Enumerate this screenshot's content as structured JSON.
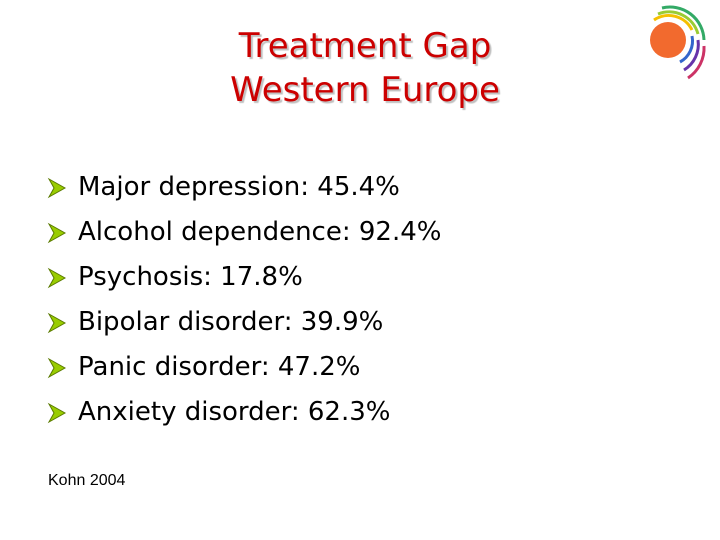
{
  "slide": {
    "title_line1": "Treatment Gap",
    "title_line2": "Western Europe",
    "bullets": [
      "Major depression: 45.4%",
      "Alcohol dependence: 92.4%",
      "Psychosis: 17.8%",
      "Bipolar disorder: 39.9%",
      "Panic disorder: 47.2%",
      "Anxiety disorder: 62.3%"
    ],
    "reference": "Kohn 2004"
  },
  "colors": {
    "title": "#cc0000",
    "bullet_arrow": "#99cc00"
  },
  "icons": {
    "bullet": "arrow-bullet-icon",
    "logo": "sun-arcs-logo"
  }
}
